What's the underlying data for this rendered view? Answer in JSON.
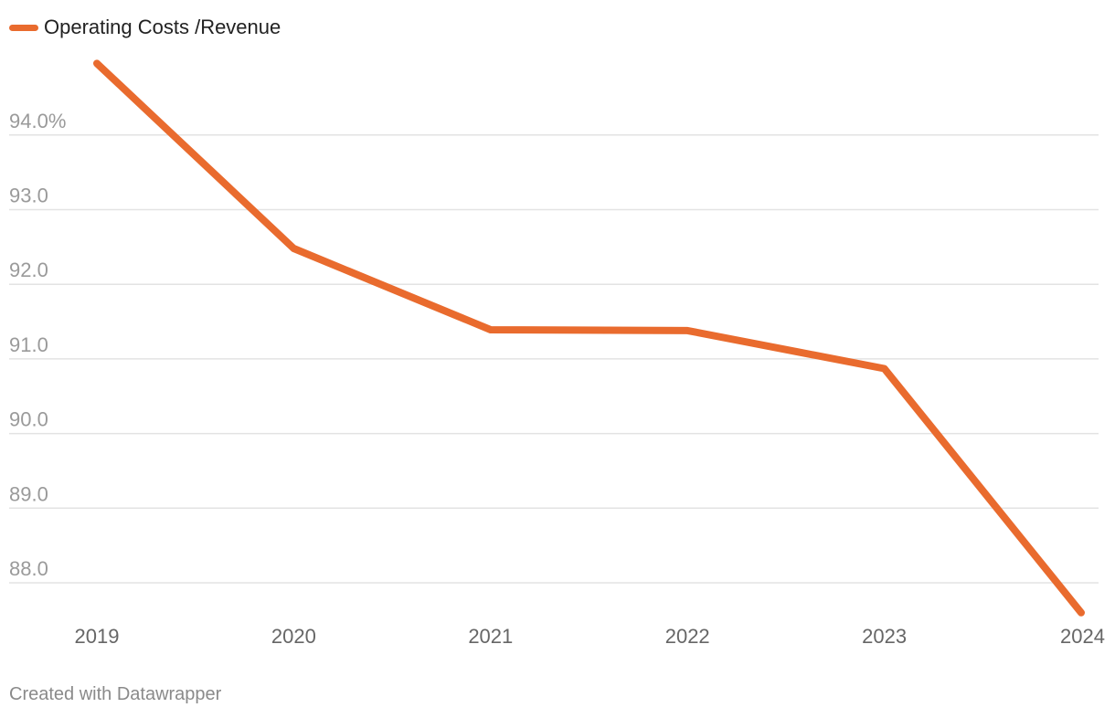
{
  "chart_data": {
    "type": "line",
    "title": "",
    "xlabel": "",
    "ylabel": "",
    "categories": [
      "2019",
      "2020",
      "2021",
      "2022",
      "2023",
      "2024"
    ],
    "series": [
      {
        "name": "Operating Costs /Revenue",
        "color": "#e96b2e",
        "values": [
          94.96,
          92.48,
          91.39,
          91.38,
          90.87,
          87.6
        ]
      }
    ],
    "yticks": [
      88.0,
      89.0,
      90.0,
      91.0,
      92.0,
      93.0,
      94.0
    ],
    "ytick_labels": [
      "88.0",
      "89.0",
      "90.0",
      "91.0",
      "92.0",
      "93.0",
      "94.0%"
    ],
    "ylim": [
      87.6,
      94.96
    ],
    "legend_position": "top-left",
    "grid": true
  },
  "footer": {
    "credit": "Created with Datawrapper"
  },
  "colors": {
    "line": "#e96b2e",
    "grid": "#e3e3e3",
    "tick_label": "#9a9a9a",
    "x_label": "#666666"
  }
}
